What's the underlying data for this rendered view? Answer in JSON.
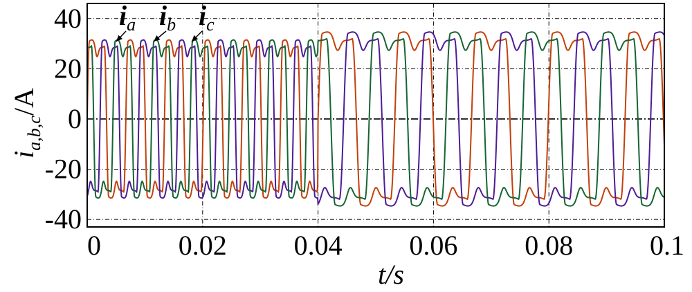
{
  "chart_data": {
    "type": "line",
    "title": "",
    "xlabel": "t/s",
    "ylabel": "i_{a,b,c}/A",
    "xlim": [
      0,
      0.1
    ],
    "ylim": [
      -43,
      46
    ],
    "x_ticks": [
      {
        "value": 0,
        "label": "0"
      },
      {
        "value": 0.02,
        "label": "0.02"
      },
      {
        "value": 0.04,
        "label": "0.04"
      },
      {
        "value": 0.06,
        "label": "0.06"
      },
      {
        "value": 0.08,
        "label": "0.08"
      },
      {
        "value": 0.1,
        "label": "0.1"
      }
    ],
    "y_ticks": [
      {
        "value": 40,
        "label": "40"
      },
      {
        "value": 20,
        "label": "20"
      },
      {
        "value": 0,
        "label": "0"
      },
      {
        "value": -20,
        "label": "-20"
      },
      {
        "value": -40,
        "label": "-40"
      }
    ],
    "grid": "dash-dot",
    "series": [
      {
        "name": "i_a",
        "label_base": "i",
        "label_sub": "a",
        "color": "#c2410c",
        "phase_deg": 0
      },
      {
        "name": "i_b",
        "label_base": "i",
        "label_sub": "b",
        "color": "#4c1d95",
        "phase_deg": -120
      },
      {
        "name": "i_c",
        "label_base": "i",
        "label_sub": "c",
        "color": "#166534",
        "phase_deg": 120
      }
    ],
    "segments": [
      {
        "name": "before",
        "x_start": 0,
        "x_end": 0.04,
        "period": 0.0067,
        "amplitude": 30,
        "waveform": "flat-top with notch"
      },
      {
        "name": "after",
        "x_start": 0.04,
        "x_end": 0.1,
        "period": 0.0133,
        "amplitude": 33,
        "waveform": "trapezoid with notch"
      }
    ]
  }
}
